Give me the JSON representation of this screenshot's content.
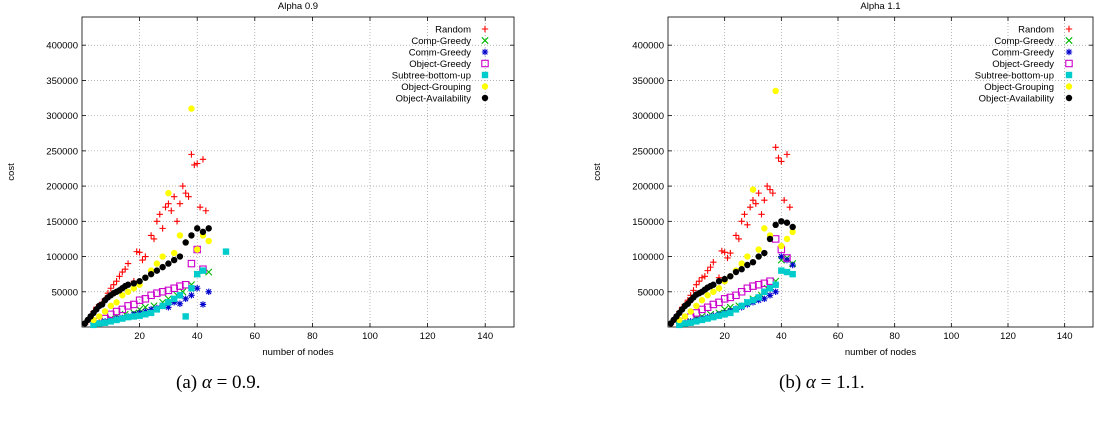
{
  "captions": [
    {
      "prefix": "(a) ",
      "symbol": "α",
      "rest": " = 0.9."
    },
    {
      "prefix": "(b) ",
      "symbol": "α",
      "rest": " = 1.1."
    }
  ],
  "chart_data": [
    {
      "type": "scatter",
      "title": "Alpha 0.9",
      "xlabel": "number of nodes",
      "ylabel": "cost",
      "xlim": [
        0,
        150
      ],
      "ylim": [
        0,
        440000
      ],
      "xticks": [
        20,
        40,
        60,
        80,
        100,
        120,
        140
      ],
      "yticks": [
        50000,
        100000,
        150000,
        200000,
        250000,
        300000,
        350000,
        400000
      ],
      "grid": true,
      "legend_position": "top-right",
      "series": [
        {
          "name": "Random",
          "color": "#ff0000",
          "marker": "plus",
          "x": [
            2,
            3,
            4,
            5,
            6,
            7,
            8,
            9,
            10,
            11,
            12,
            13,
            14,
            15,
            16,
            18,
            19,
            20,
            21,
            22,
            24,
            25,
            26,
            27,
            28,
            29,
            30,
            31,
            32,
            33,
            34,
            35,
            36,
            37,
            38,
            39,
            40,
            41,
            42,
            43
          ],
          "y": [
            8000,
            15000,
            22000,
            28000,
            30000,
            35000,
            40000,
            48000,
            55000,
            60000,
            65000,
            72000,
            78000,
            82000,
            90000,
            65000,
            107000,
            106000,
            95000,
            100000,
            130000,
            125000,
            150000,
            160000,
            140000,
            170000,
            175000,
            165000,
            185000,
            150000,
            175000,
            200000,
            190000,
            185000,
            245000,
            230000,
            232000,
            170000,
            238000,
            165000
          ]
        },
        {
          "name": "Comp-Greedy",
          "color": "#00bb00",
          "marker": "x",
          "x": [
            5,
            8,
            10,
            12,
            15,
            18,
            20,
            22,
            25,
            28,
            30,
            33,
            35,
            38,
            40,
            42,
            44
          ],
          "y": [
            5000,
            8000,
            12000,
            15000,
            18000,
            20000,
            25000,
            28000,
            30000,
            35000,
            40000,
            45000,
            50000,
            60000,
            75000,
            80000,
            78000
          ]
        },
        {
          "name": "Comm-Greedy",
          "color": "#0000cc",
          "marker": "star",
          "x": [
            4,
            6,
            8,
            10,
            12,
            14,
            16,
            18,
            20,
            22,
            24,
            26,
            28,
            30,
            32,
            34,
            36,
            38,
            40,
            42,
            44
          ],
          "y": [
            5000,
            6000,
            8000,
            10000,
            12000,
            13000,
            15000,
            18000,
            20000,
            22000,
            25000,
            27000,
            30000,
            28000,
            35000,
            33000,
            40000,
            45000,
            55000,
            32000,
            50000
          ]
        },
        {
          "name": "Object-Greedy",
          "color": "#cc00cc",
          "marker": "square",
          "x": [
            5,
            8,
            10,
            12,
            14,
            16,
            18,
            20,
            22,
            24,
            26,
            28,
            30,
            32,
            34,
            36,
            38,
            40,
            42
          ],
          "y": [
            8000,
            12000,
            18000,
            22000,
            25000,
            30000,
            32000,
            38000,
            40000,
            45000,
            48000,
            50000,
            52000,
            55000,
            58000,
            60000,
            90000,
            110000,
            82000
          ]
        },
        {
          "name": "Subtree-bottom-up",
          "color": "#00cccc",
          "marker": "filled-square",
          "x": [
            4,
            6,
            8,
            10,
            12,
            14,
            16,
            18,
            20,
            22,
            24,
            26,
            28,
            30,
            32,
            34,
            36,
            38,
            40,
            42,
            50
          ],
          "y": [
            3000,
            5000,
            6000,
            8000,
            10000,
            12000,
            14000,
            15000,
            16000,
            18000,
            20000,
            25000,
            30000,
            35000,
            40000,
            45000,
            15000,
            55000,
            75000,
            80000,
            107000
          ]
        },
        {
          "name": "Object-Grouping",
          "color": "#ffff00",
          "marker": "circle",
          "x": [
            4,
            6,
            8,
            10,
            12,
            14,
            16,
            18,
            20,
            22,
            24,
            26,
            28,
            30,
            32,
            34,
            36,
            38,
            40,
            42,
            44
          ],
          "y": [
            10000,
            15000,
            22000,
            30000,
            35000,
            45000,
            50000,
            55000,
            60000,
            70000,
            80000,
            90000,
            100000,
            190000,
            105000,
            130000,
            120000,
            310000,
            110000,
            130000,
            122000
          ]
        },
        {
          "name": "Object-Availability",
          "color": "#000000",
          "marker": "filled-circle",
          "x": [
            1,
            2,
            3,
            4,
            5,
            6,
            7,
            8,
            9,
            10,
            11,
            12,
            13,
            14,
            15,
            16,
            18,
            20,
            22,
            24,
            26,
            28,
            30,
            32,
            34,
            36,
            38,
            40,
            42,
            44
          ],
          "y": [
            5000,
            10000,
            15000,
            20000,
            25000,
            30000,
            32000,
            38000,
            42000,
            45000,
            48000,
            50000,
            52000,
            55000,
            58000,
            60000,
            62000,
            65000,
            70000,
            75000,
            80000,
            85000,
            90000,
            95000,
            100000,
            120000,
            130000,
            140000,
            135000,
            140000
          ]
        }
      ]
    },
    {
      "type": "scatter",
      "title": "Alpha 1.1",
      "xlabel": "number of nodes",
      "ylabel": "cost",
      "xlim": [
        0,
        150
      ],
      "ylim": [
        0,
        440000
      ],
      "xticks": [
        20,
        40,
        60,
        80,
        100,
        120,
        140
      ],
      "yticks": [
        50000,
        100000,
        150000,
        200000,
        250000,
        300000,
        350000,
        400000
      ],
      "grid": true,
      "legend_position": "top-right",
      "series": [
        {
          "name": "Random",
          "color": "#ff0000",
          "marker": "plus",
          "x": [
            2,
            3,
            4,
            5,
            6,
            7,
            8,
            9,
            10,
            11,
            12,
            13,
            14,
            15,
            16,
            18,
            19,
            20,
            21,
            22,
            24,
            25,
            26,
            27,
            28,
            29,
            30,
            31,
            32,
            33,
            34,
            35,
            36,
            37,
            38,
            39,
            40,
            41,
            42,
            43
          ],
          "y": [
            8000,
            15000,
            22000,
            28000,
            32000,
            38000,
            45000,
            52000,
            60000,
            65000,
            70000,
            72000,
            80000,
            85000,
            92000,
            70000,
            108000,
            106000,
            98000,
            105000,
            130000,
            125000,
            150000,
            160000,
            145000,
            170000,
            180000,
            175000,
            190000,
            160000,
            180000,
            200000,
            195000,
            190000,
            255000,
            240000,
            235000,
            180000,
            245000,
            170000
          ]
        },
        {
          "name": "Comp-Greedy",
          "color": "#00bb00",
          "marker": "x",
          "x": [
            5,
            8,
            10,
            12,
            15,
            18,
            20,
            22,
            25,
            28,
            30,
            33,
            35,
            38,
            40,
            42,
            44
          ],
          "y": [
            5000,
            8000,
            12000,
            15000,
            18000,
            20000,
            25000,
            28000,
            30000,
            35000,
            40000,
            45000,
            55000,
            65000,
            95000,
            98000,
            90000
          ]
        },
        {
          "name": "Comm-Greedy",
          "color": "#0000cc",
          "marker": "star",
          "x": [
            4,
            6,
            8,
            10,
            12,
            14,
            16,
            18,
            20,
            22,
            24,
            26,
            28,
            30,
            32,
            34,
            36,
            38,
            40,
            42,
            44
          ],
          "y": [
            5000,
            6000,
            8000,
            10000,
            12000,
            14000,
            16000,
            18000,
            20000,
            23000,
            26000,
            28000,
            32000,
            35000,
            38000,
            40000,
            45000,
            50000,
            100000,
            95000,
            88000
          ]
        },
        {
          "name": "Object-Greedy",
          "color": "#cc00cc",
          "marker": "square",
          "x": [
            5,
            8,
            10,
            12,
            14,
            16,
            18,
            20,
            22,
            24,
            26,
            28,
            30,
            32,
            34,
            36,
            38,
            40,
            42
          ],
          "y": [
            8000,
            14000,
            20000,
            25000,
            28000,
            32000,
            35000,
            40000,
            42000,
            45000,
            50000,
            55000,
            58000,
            60000,
            62000,
            65000,
            125000,
            110000,
            98000
          ]
        },
        {
          "name": "Subtree-bottom-up",
          "color": "#00cccc",
          "marker": "filled-square",
          "x": [
            4,
            6,
            8,
            10,
            12,
            14,
            16,
            18,
            20,
            22,
            24,
            26,
            28,
            30,
            32,
            34,
            36,
            38,
            40,
            42,
            44
          ],
          "y": [
            3000,
            5000,
            6000,
            8000,
            10000,
            12000,
            14000,
            16000,
            18000,
            20000,
            25000,
            30000,
            35000,
            38000,
            42000,
            50000,
            55000,
            60000,
            80000,
            78000,
            75000
          ]
        },
        {
          "name": "Object-Grouping",
          "color": "#ffff00",
          "marker": "circle",
          "x": [
            4,
            6,
            8,
            10,
            12,
            14,
            16,
            18,
            20,
            22,
            24,
            26,
            28,
            30,
            32,
            34,
            36,
            38,
            40,
            42,
            44
          ],
          "y": [
            10000,
            15000,
            22000,
            30000,
            38000,
            45000,
            50000,
            55000,
            65000,
            72000,
            80000,
            90000,
            100000,
            195000,
            110000,
            140000,
            130000,
            335000,
            115000,
            125000,
            135000
          ]
        },
        {
          "name": "Object-Availability",
          "color": "#000000",
          "marker": "filled-circle",
          "x": [
            1,
            2,
            3,
            4,
            5,
            6,
            7,
            8,
            9,
            10,
            11,
            12,
            13,
            14,
            15,
            16,
            18,
            20,
            22,
            24,
            26,
            28,
            30,
            32,
            34,
            36,
            38,
            40,
            42,
            44
          ],
          "y": [
            5000,
            10000,
            15000,
            20000,
            25000,
            30000,
            33000,
            38000,
            42000,
            46000,
            48000,
            50000,
            53000,
            56000,
            58000,
            60000,
            65000,
            68000,
            72000,
            78000,
            82000,
            88000,
            92000,
            100000,
            105000,
            125000,
            145000,
            150000,
            148000,
            142000
          ]
        }
      ]
    }
  ]
}
